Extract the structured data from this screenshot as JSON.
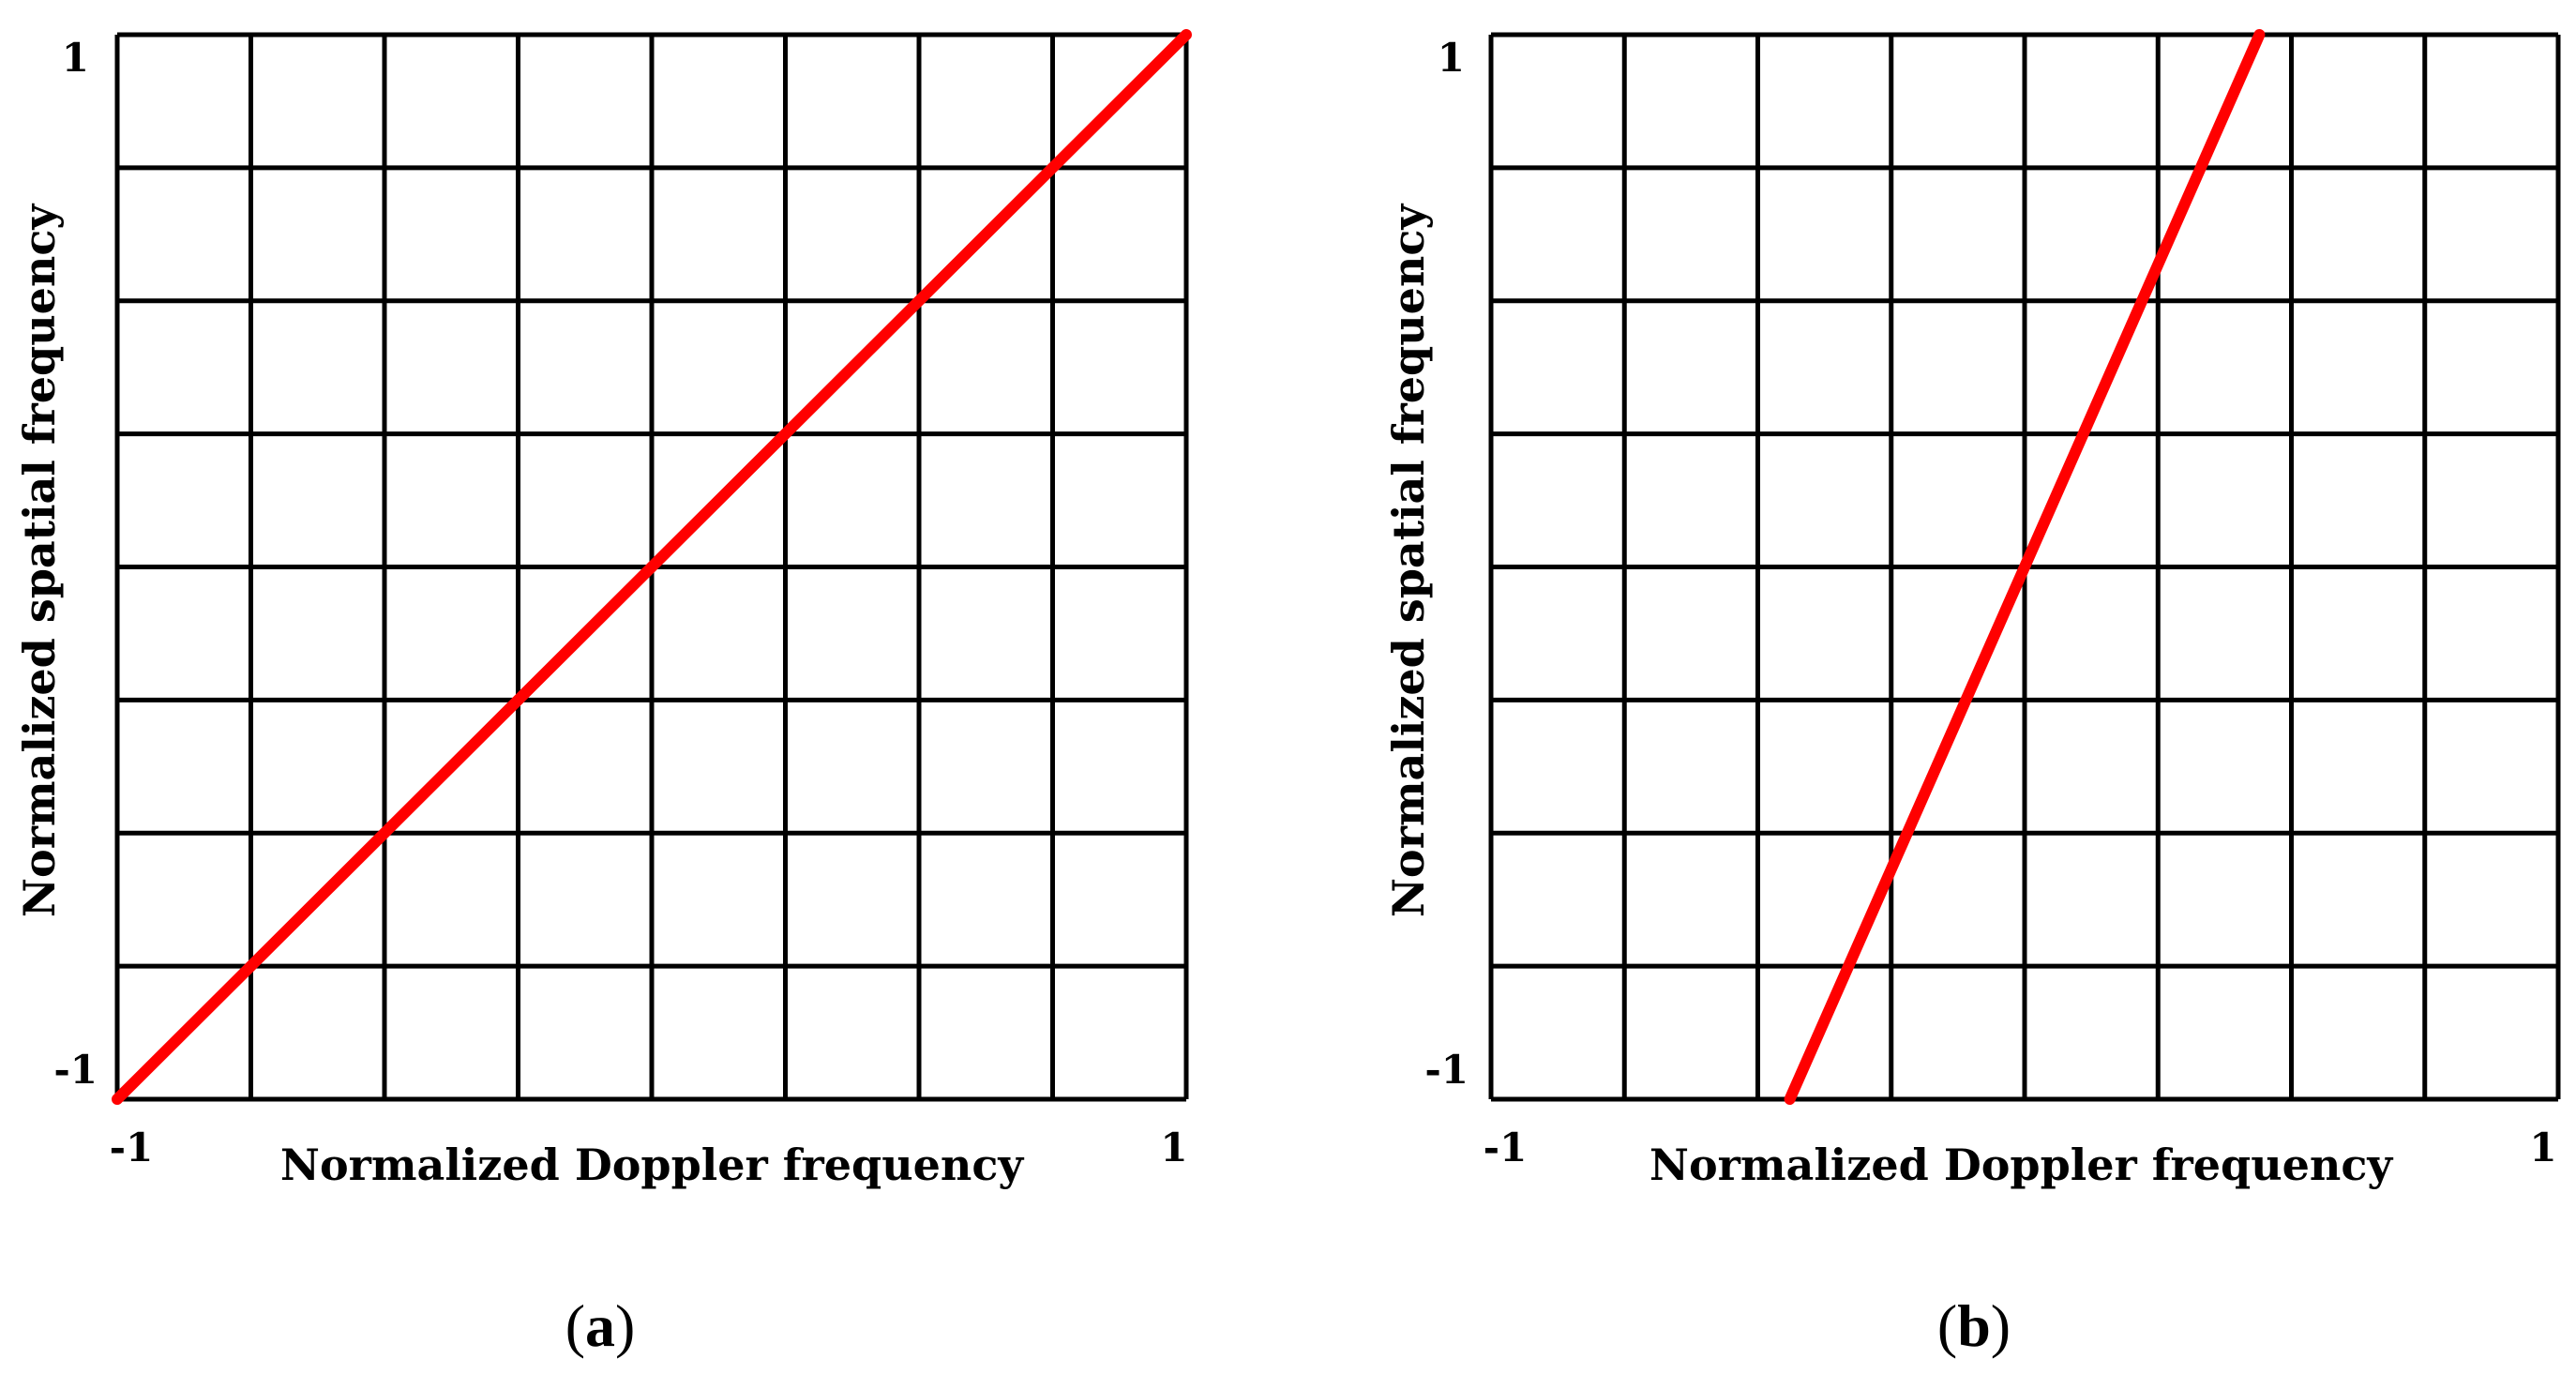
{
  "chart_data": [
    {
      "type": "line",
      "panel_label": "a",
      "xlabel": "Normalized Doppler frequency",
      "ylabel": "Normalized spatial frequency",
      "xlim": [
        -1,
        1
      ],
      "ylim": [
        -1,
        1
      ],
      "x_ticks": [
        "-1",
        "1"
      ],
      "y_ticks": [
        "1",
        "-1"
      ],
      "grid": true,
      "grid_divisions": 8,
      "series": [
        {
          "color": "#ff0000",
          "x": [
            -1,
            1
          ],
          "y": [
            -1,
            1
          ]
        }
      ]
    },
    {
      "type": "line",
      "panel_label": "b",
      "xlabel": "Normalized Doppler frequency",
      "ylabel": "Normalized spatial frequency",
      "xlim": [
        -1,
        1
      ],
      "ylim": [
        -1,
        1
      ],
      "x_ticks": [
        "-1",
        "1"
      ],
      "y_ticks": [
        "1",
        "-1"
      ],
      "grid": true,
      "grid_divisions": 8,
      "series": [
        {
          "color": "#ff0000",
          "x": [
            -0.44,
            0.44
          ],
          "y": [
            -1,
            1
          ]
        }
      ]
    }
  ]
}
